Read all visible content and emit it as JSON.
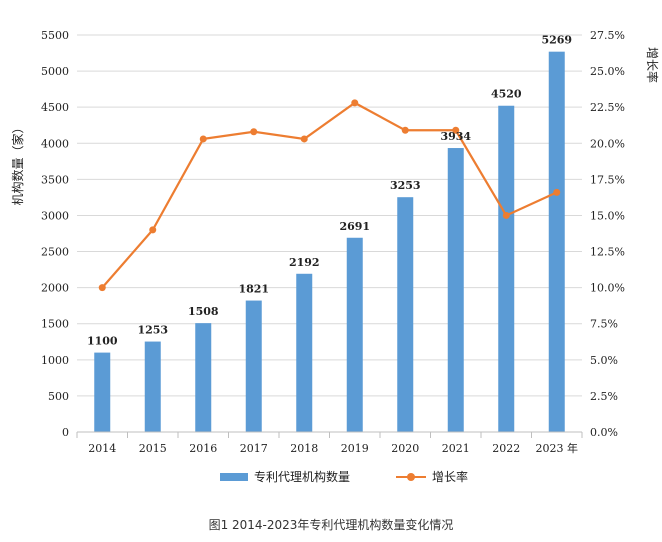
{
  "chart_data": {
    "type": "bar+line",
    "categories": [
      "2014",
      "2015",
      "2016",
      "2017",
      "2018",
      "2019",
      "2020",
      "2021",
      "2022",
      "2023 年"
    ],
    "series": [
      {
        "name": "专利代理机构数量",
        "type": "bar",
        "axis": "left",
        "values": [
          1100,
          1253,
          1508,
          1821,
          2192,
          2691,
          3253,
          3934,
          4520,
          5269
        ]
      },
      {
        "name": "增长率",
        "type": "line",
        "axis": "right",
        "values": [
          10.0,
          14.0,
          20.3,
          20.8,
          20.3,
          22.8,
          20.9,
          20.9,
          15.0,
          16.6
        ]
      }
    ],
    "value_labels": [
      "1100",
      "1253",
      "1508",
      "1821",
      "2192",
      "2691",
      "3253",
      "3934",
      "4520",
      "5269"
    ],
    "ylabel": "机构数量（家）",
    "y2label": "增长率",
    "ylim": [
      0,
      5500
    ],
    "y_ticks": [
      "0",
      "500",
      "1000",
      "1500",
      "2000",
      "2500",
      "3000",
      "3500",
      "4000",
      "4500",
      "5000",
      "5500"
    ],
    "y2lim": [
      0,
      27.5
    ],
    "y2_ticks": [
      "0.0%",
      "2.5%",
      "5.0%",
      "7.5%",
      "10.0%",
      "12.5%",
      "15.0%",
      "17.5%",
      "20.0%",
      "22.5%",
      "25.0%",
      "27.5%"
    ],
    "grid": true,
    "legend_position": "bottom",
    "highlight_index": 9,
    "colors": {
      "bar": "#5b9bd5",
      "line": "#ed7d31",
      "highlight_label": "#c00000",
      "grid": "#d9d9d9"
    }
  },
  "legend": {
    "bar_label": "专利代理机构数量",
    "line_label": "增长率"
  },
  "caption": "图1 2014-2023年专利代理机构数量变化情况"
}
